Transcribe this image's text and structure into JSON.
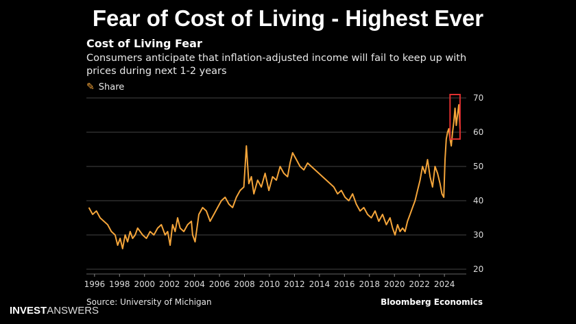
{
  "headline": "Fear of Cost of Living - Highest Ever",
  "share_label": "Share",
  "colors": {
    "line": "#f5a53a",
    "highlight_box": "#e03030",
    "grid": "#444444"
  },
  "logo": {
    "bold": "INVEST",
    "light": "ANSWERS"
  },
  "chart_data": {
    "type": "line",
    "title": "Cost of Living Fear",
    "subtitle": "Consumers anticipate that inflation-adjusted income will fail to keep up with prices during next 1-2 years",
    "source": "Source: University of Michigan",
    "brand": "Bloomberg Economics",
    "xlabel": "",
    "ylabel": "",
    "xlim": [
      1995.5,
      2025.9
    ],
    "ylim": [
      20,
      70
    ],
    "x_ticks": [
      "1996",
      "1998",
      "2000",
      "2002",
      "2004",
      "2006",
      "2008",
      "2010",
      "2012",
      "2014",
      "2016",
      "2018",
      "2020",
      "2022",
      "2024"
    ],
    "y_ticks": [
      "20",
      "30",
      "40",
      "50",
      "60",
      "70"
    ],
    "grid": true,
    "y_axis_side": "right",
    "highlight_box": {
      "x0": 2024.6,
      "x1": 2025.4,
      "y0": 58,
      "y1": 71
    },
    "series": [
      {
        "name": "Cost of Living Fear",
        "x": [
          1995.7,
          1996.0,
          1996.3,
          1996.6,
          1996.9,
          1997.2,
          1997.5,
          1997.8,
          1998.0,
          1998.2,
          1998.4,
          1998.6,
          1998.8,
          1999.0,
          1999.2,
          1999.4,
          1999.6,
          1999.8,
          2000.0,
          2000.3,
          2000.6,
          2000.9,
          2001.2,
          2001.5,
          2001.8,
          2002.0,
          2002.2,
          2002.4,
          2002.6,
          2002.8,
          2003.0,
          2003.3,
          2003.6,
          2003.9,
          2004.0,
          2004.2,
          2004.5,
          2004.8,
          2005.1,
          2005.4,
          2005.7,
          2006.0,
          2006.3,
          2006.6,
          2006.9,
          2007.2,
          2007.5,
          2007.8,
          2008.1,
          2008.3,
          2008.5,
          2008.7,
          2008.9,
          2009.2,
          2009.5,
          2009.8,
          2010.1,
          2010.4,
          2010.7,
          2011.0,
          2011.3,
          2011.6,
          2011.8,
          2012.0,
          2012.3,
          2012.6,
          2012.9,
          2013.2,
          2013.5,
          2013.8,
          2014.1,
          2014.4,
          2014.7,
          2015.0,
          2015.3,
          2015.6,
          2015.9,
          2016.2,
          2016.5,
          2016.8,
          2017.1,
          2017.4,
          2017.7,
          2018.0,
          2018.3,
          2018.6,
          2018.9,
          2019.2,
          2019.5,
          2019.8,
          2020.0,
          2020.2,
          2020.4,
          2020.6,
          2020.8,
          2021.0,
          2021.2,
          2021.4,
          2021.6,
          2021.8,
          2022.0,
          2022.2,
          2022.4,
          2022.6,
          2022.8,
          2023.0,
          2023.2,
          2023.4,
          2023.6,
          2023.8,
          2023.95,
          2024.1,
          2024.2,
          2024.3,
          2024.4,
          2024.5,
          2024.6,
          2024.7,
          2024.8,
          2024.9,
          2025.0,
          2025.1,
          2025.2,
          2025.3,
          2025.4
        ],
        "values": [
          38,
          36,
          37,
          35,
          34,
          33,
          31,
          30,
          27,
          29,
          26,
          30,
          28,
          31,
          29,
          30,
          32,
          31,
          30,
          29,
          31,
          30,
          32,
          33,
          30,
          31,
          27,
          33,
          31,
          35,
          32,
          31,
          33,
          34,
          30,
          28,
          36,
          38,
          37,
          34,
          36,
          38,
          40,
          41,
          39,
          38,
          41,
          43,
          44,
          56,
          45,
          47,
          42,
          46,
          44,
          48,
          43,
          47,
          46,
          50,
          48,
          47,
          51,
          54,
          52,
          50,
          49,
          51,
          50,
          49,
          48,
          47,
          46,
          45,
          44,
          42,
          43,
          41,
          40,
          42,
          39,
          37,
          38,
          36,
          35,
          37,
          34,
          36,
          33,
          35,
          32,
          30,
          33,
          31,
          32,
          31,
          34,
          36,
          38,
          40,
          43,
          46,
          50,
          48,
          52,
          47,
          44,
          50,
          48,
          45,
          42,
          41,
          52,
          58,
          60,
          61,
          58,
          56,
          60,
          63,
          67,
          62,
          65,
          68,
          61
        ]
      }
    ]
  }
}
